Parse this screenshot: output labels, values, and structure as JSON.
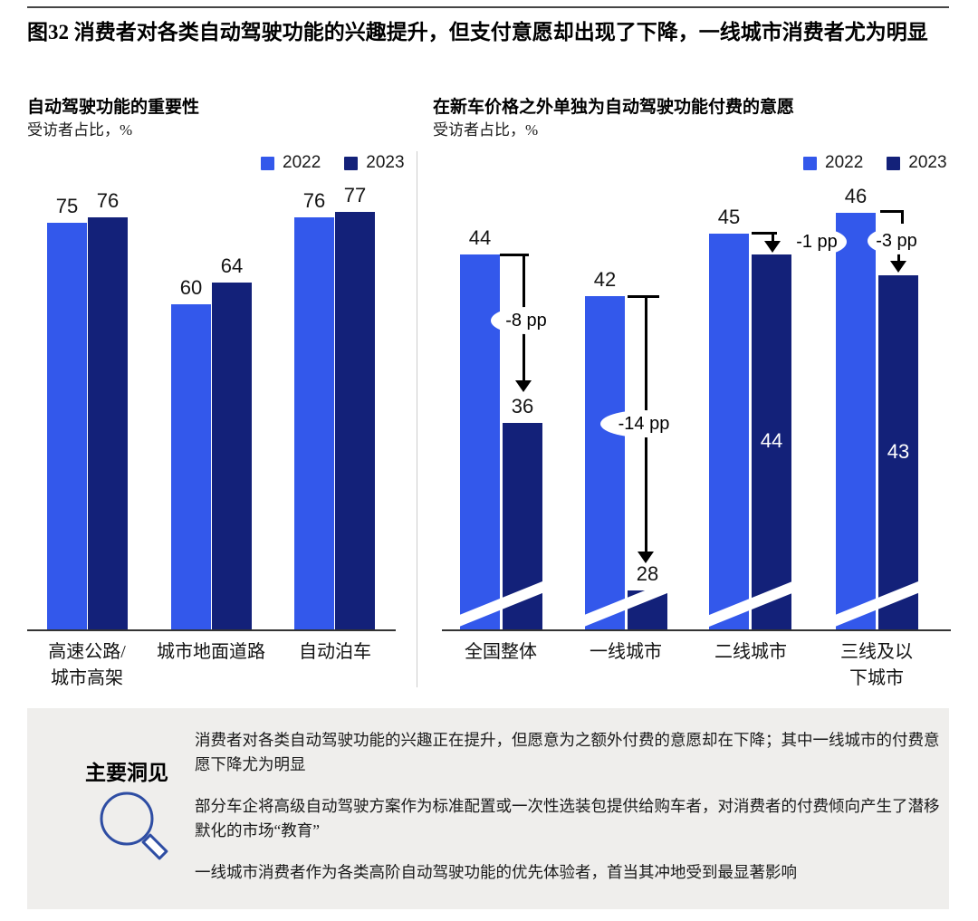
{
  "figure_title": "图32 消费者对各类自动驾驶功能的兴趣提升，但支付意愿却出现了下降，一线城市消费者尤为明显",
  "colors": {
    "blue_2022": "#3358EB",
    "navy_2023": "#132179",
    "axis": "#333333",
    "annotation": "#000000",
    "divider": "#cccccc",
    "insight_bg": "#efeeec",
    "icon_stroke": "#2e4da3"
  },
  "chart_data": [
    {
      "type": "bar",
      "title": "自动驾驶功能的重要性",
      "subtitle": "受访者占比，%",
      "categories": [
        "高速公路/\n城市高架",
        "城市地面道路",
        "自动泊车"
      ],
      "series": [
        {
          "name": "2022",
          "values": [
            75,
            60,
            76
          ]
        },
        {
          "name": "2023",
          "values": [
            76,
            64,
            77
          ]
        }
      ],
      "ylim": [
        0,
        80
      ],
      "legend_position": "top-right",
      "value_labels": true,
      "grid": false
    },
    {
      "type": "bar",
      "title": "在新车价格之外单独为自动驾驶功能付费的意愿",
      "subtitle": "受访者占比，%",
      "categories": [
        "全国整体",
        "一线城市",
        "二线城市",
        "三线及以\n下城市"
      ],
      "series": [
        {
          "name": "2022",
          "values": [
            44,
            42,
            45,
            46
          ]
        },
        {
          "name": "2023",
          "values": [
            36,
            28,
            44,
            43
          ]
        }
      ],
      "change_annotations": [
        "-8 pp",
        "-14 pp",
        "-1 pp",
        "-3 pp"
      ],
      "axis_break": true,
      "legend_position": "top-right",
      "value_labels": true,
      "grid": false
    }
  ],
  "insights": {
    "heading": "主要洞见",
    "icon": "magnifier-icon",
    "bullets": [
      "消费者对各类自动驾驶功能的兴趣正在提升，但愿意为之额外付费的意愿却在下降；其中一线城市的付费意愿下降尤为明显",
      "部分车企将高级自动驾驶方案作为标准配置或一次性选装包提供给购车者，对消费者的付费倾向产生了潜移默化的市场“教育”",
      "一线城市消费者作为各类高阶自动驾驶功能的优先体验者，首当其冲地受到最显著影响"
    ]
  }
}
